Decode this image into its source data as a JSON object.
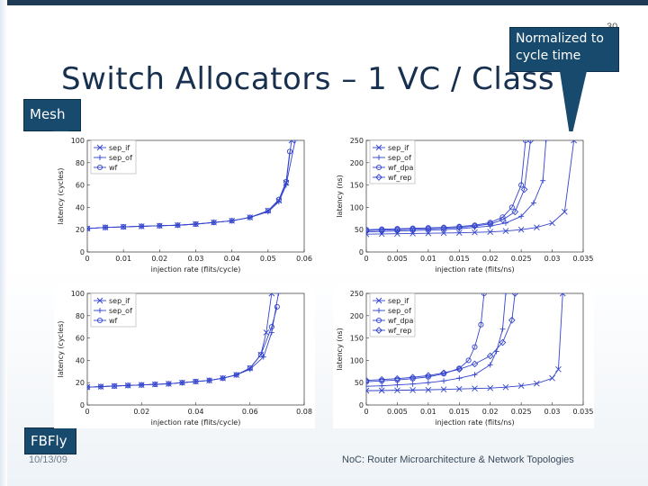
{
  "slide": {
    "title": "Switch Allocators – 1 VC / Class",
    "page_number": "30",
    "callout_normalized": "Normalized to cycle time",
    "label_mesh": "Mesh",
    "label_fbfly": "FBFly",
    "footer_date": "10/13/09",
    "footer_text": "NoC: Router Microarchitecture & Network Topologies",
    "colors": {
      "series": "#3344cc",
      "callout": "#184a6e",
      "title": "#17304f"
    }
  },
  "chart_data": [
    {
      "type": "line",
      "xlabel": "injection rate (flits/cycle)",
      "ylabel": "latency (cycles)",
      "xlim": [
        0,
        0.06
      ],
      "ylim": [
        0,
        100
      ],
      "xticks": [
        "0",
        "0.01",
        "0.02",
        "0.03",
        "0.04",
        "0.05",
        "0.06"
      ],
      "xtick_values": [
        0,
        0.01,
        0.02,
        0.03,
        0.04,
        0.05,
        0.06
      ],
      "yticks": [
        "0",
        "20",
        "40",
        "60",
        "80",
        "100"
      ],
      "ytick_values": [
        0,
        20,
        40,
        60,
        80,
        100
      ],
      "legend": [
        "sep_if",
        "sep_of",
        "wf"
      ],
      "series": [
        {
          "name": "sep_if",
          "marker": "x",
          "x": [
            0,
            0.005,
            0.01,
            0.015,
            0.02,
            0.025,
            0.03,
            0.035,
            0.04,
            0.045,
            0.05,
            0.053,
            0.055,
            0.0565
          ],
          "y": [
            21,
            22,
            22.5,
            23,
            23.5,
            24,
            25,
            26.5,
            28,
            31,
            37,
            46,
            62,
            100
          ]
        },
        {
          "name": "sep_of",
          "marker": "+",
          "x": [
            0,
            0.005,
            0.01,
            0.015,
            0.02,
            0.025,
            0.03,
            0.035,
            0.04,
            0.045,
            0.05,
            0.053,
            0.055,
            0.0575
          ],
          "y": [
            21,
            22,
            22.5,
            23,
            23.5,
            24,
            25,
            26.5,
            28,
            31,
            36,
            45,
            60,
            100
          ]
        },
        {
          "name": "wf",
          "marker": "o",
          "x": [
            0,
            0.005,
            0.01,
            0.015,
            0.02,
            0.025,
            0.03,
            0.035,
            0.04,
            0.045,
            0.05,
            0.053,
            0.055,
            0.056
          ],
          "y": [
            21,
            22,
            22.5,
            23,
            23.5,
            24,
            25,
            26.5,
            28,
            31,
            37,
            47,
            63,
            90
          ]
        }
      ]
    },
    {
      "type": "line",
      "xlabel": "injection rate (flits/ns)",
      "ylabel": "latency (ns)",
      "xlim": [
        0,
        0.035
      ],
      "ylim": [
        0,
        250
      ],
      "xticks": [
        "0",
        "0.005",
        "0.01",
        "0.015",
        "0.02",
        "0.025",
        "0.03",
        "0.035"
      ],
      "xtick_values": [
        0,
        0.005,
        0.01,
        0.015,
        0.02,
        0.025,
        0.03,
        0.035
      ],
      "yticks": [
        "0",
        "50",
        "100",
        "150",
        "200",
        "250"
      ],
      "ytick_values": [
        0,
        50,
        100,
        150,
        200,
        250
      ],
      "legend": [
        "sep_if",
        "sep_of",
        "wf_dpa",
        "wf_rep"
      ],
      "series": [
        {
          "name": "sep_if",
          "marker": "x",
          "x": [
            0,
            0.0025,
            0.005,
            0.0075,
            0.01,
            0.0125,
            0.015,
            0.0175,
            0.02,
            0.0225,
            0.025,
            0.0275,
            0.03,
            0.032,
            0.0335
          ],
          "y": [
            40,
            40.5,
            41,
            41.5,
            42,
            42.5,
            43,
            44,
            45,
            47,
            50,
            55,
            65,
            90,
            250
          ]
        },
        {
          "name": "sep_of",
          "marker": "+",
          "x": [
            0,
            0.0025,
            0.005,
            0.0075,
            0.01,
            0.0125,
            0.015,
            0.0175,
            0.02,
            0.0225,
            0.025,
            0.027,
            0.0285,
            0.029
          ],
          "y": [
            45,
            46,
            47,
            48,
            49,
            50,
            52,
            55,
            58,
            65,
            80,
            110,
            160,
            250
          ]
        },
        {
          "name": "wf_dpa",
          "marker": "o",
          "x": [
            0,
            0.0025,
            0.005,
            0.0075,
            0.01,
            0.0125,
            0.015,
            0.0175,
            0.02,
            0.022,
            0.0235,
            0.025,
            0.0257
          ],
          "y": [
            50,
            51,
            52,
            53,
            54,
            55,
            57,
            60,
            66,
            78,
            100,
            150,
            250
          ]
        },
        {
          "name": "wf_rep",
          "marker": "d",
          "x": [
            0,
            0.0025,
            0.005,
            0.0075,
            0.01,
            0.0125,
            0.015,
            0.0175,
            0.02,
            0.022,
            0.024,
            0.0255,
            0.0265
          ],
          "y": [
            48,
            49,
            50,
            51,
            52,
            53,
            55,
            58,
            63,
            72,
            90,
            140,
            250
          ]
        }
      ]
    },
    {
      "type": "line",
      "xlabel": "injection rate (flits/cycle)",
      "ylabel": "latency (cycles)",
      "xlim": [
        0,
        0.08
      ],
      "ylim": [
        0,
        100
      ],
      "xticks": [
        "0",
        "0.02",
        "0.04",
        "0.06",
        "0.08"
      ],
      "xtick_values": [
        0,
        0.02,
        0.04,
        0.06,
        0.08
      ],
      "yticks": [
        "0",
        "20",
        "40",
        "60",
        "80",
        "100"
      ],
      "ytick_values": [
        0,
        20,
        40,
        60,
        80,
        100
      ],
      "legend": [
        "sep_if",
        "sep_of",
        "wf"
      ],
      "series": [
        {
          "name": "sep_if",
          "marker": "x",
          "x": [
            0,
            0.005,
            0.01,
            0.015,
            0.02,
            0.025,
            0.03,
            0.035,
            0.04,
            0.045,
            0.05,
            0.055,
            0.06,
            0.064,
            0.066,
            0.068
          ],
          "y": [
            16,
            16.5,
            17,
            17.5,
            18,
            18.5,
            19,
            20,
            21,
            22,
            24,
            27,
            33,
            45,
            65,
            100
          ]
        },
        {
          "name": "sep_of",
          "marker": "+",
          "x": [
            0,
            0.005,
            0.01,
            0.015,
            0.02,
            0.025,
            0.03,
            0.035,
            0.04,
            0.045,
            0.05,
            0.055,
            0.06,
            0.065,
            0.068,
            0.0705
          ],
          "y": [
            16,
            16.5,
            17,
            17.5,
            18,
            18.5,
            19,
            20,
            21,
            22,
            24,
            27,
            32,
            43,
            65,
            100
          ]
        },
        {
          "name": "wf",
          "marker": "o",
          "x": [
            0,
            0.005,
            0.01,
            0.015,
            0.02,
            0.025,
            0.03,
            0.035,
            0.04,
            0.045,
            0.05,
            0.055,
            0.06,
            0.064,
            0.068,
            0.07
          ],
          "y": [
            16,
            16.5,
            17,
            17.5,
            18,
            18.5,
            19,
            20,
            21,
            22,
            24,
            27,
            33,
            45,
            70,
            88
          ]
        }
      ]
    },
    {
      "type": "line",
      "xlabel": "injection rate (flits/ns)",
      "ylabel": "latency (ns)",
      "xlim": [
        0,
        0.035
      ],
      "ylim": [
        0,
        250
      ],
      "xticks": [
        "0",
        "0.005",
        "0.01",
        "0.015",
        "0.02",
        "0.025",
        "0.03",
        "0.035"
      ],
      "xtick_values": [
        0,
        0.005,
        0.01,
        0.015,
        0.02,
        0.025,
        0.03,
        0.035
      ],
      "yticks": [
        "0",
        "50",
        "100",
        "150",
        "200",
        "250"
      ],
      "ytick_values": [
        0,
        50,
        100,
        150,
        200,
        250
      ],
      "legend": [
        "sep_if",
        "sep_of",
        "wf_dpa",
        "wf_rep"
      ],
      "series": [
        {
          "name": "sep_if",
          "marker": "x",
          "x": [
            0,
            0.0025,
            0.005,
            0.0075,
            0.01,
            0.0125,
            0.015,
            0.0175,
            0.02,
            0.0225,
            0.025,
            0.0275,
            0.03,
            0.031,
            0.0317
          ],
          "y": [
            32,
            32.5,
            33,
            33.5,
            34,
            35,
            36,
            37,
            38,
            40,
            43,
            48,
            60,
            80,
            250
          ]
        },
        {
          "name": "sep_of",
          "marker": "+",
          "x": [
            0,
            0.0025,
            0.005,
            0.0075,
            0.01,
            0.0125,
            0.015,
            0.0175,
            0.02,
            0.021,
            0.022,
            0.0225
          ],
          "y": [
            42,
            43,
            45,
            47,
            50,
            54,
            60,
            68,
            90,
            120,
            170,
            250
          ]
        },
        {
          "name": "wf_dpa",
          "marker": "o",
          "x": [
            0,
            0.0025,
            0.005,
            0.0075,
            0.01,
            0.0125,
            0.015,
            0.0165,
            0.0175,
            0.0185,
            0.019
          ],
          "y": [
            52,
            54,
            56,
            59,
            63,
            70,
            82,
            100,
            130,
            180,
            250
          ]
        },
        {
          "name": "wf_rep",
          "marker": "d",
          "x": [
            0,
            0.0025,
            0.005,
            0.0075,
            0.01,
            0.0125,
            0.015,
            0.0175,
            0.02,
            0.022,
            0.0235,
            0.024
          ],
          "y": [
            55,
            57,
            59,
            62,
            66,
            72,
            80,
            92,
            110,
            140,
            190,
            250
          ]
        }
      ]
    }
  ]
}
